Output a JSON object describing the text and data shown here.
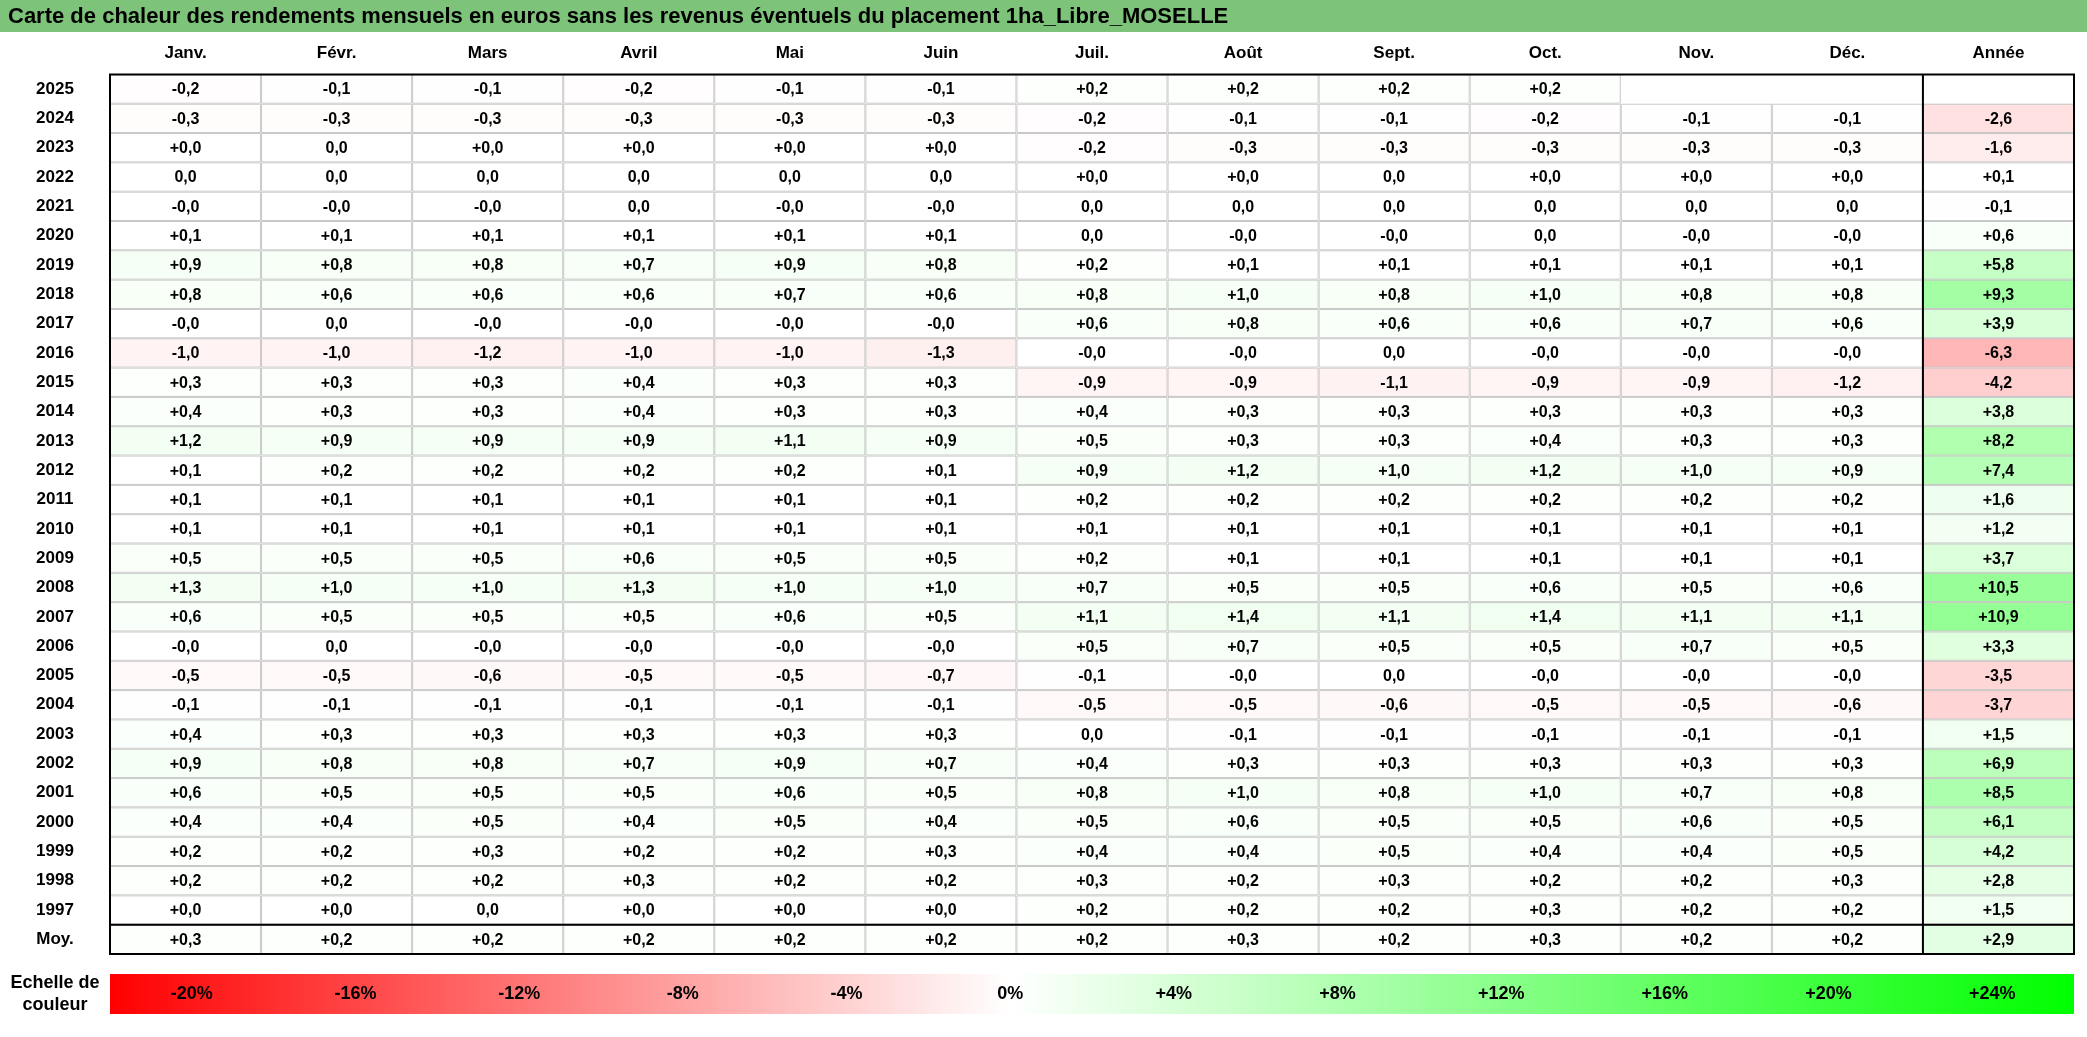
{
  "chart_data": {
    "type": "heatmap",
    "title": "Carte de chaleur des rendements mensuels en euros sans les revenus éventuels du placement 1ha_Libre_MOSELLE",
    "categories": [
      "Janv.",
      "Févr.",
      "Mars",
      "Avril",
      "Mai",
      "Juin",
      "Juil.",
      "Août",
      "Sept.",
      "Oct.",
      "Nov.",
      "Déc.",
      "Année"
    ],
    "y_categories": [
      "2025",
      "2024",
      "2023",
      "2022",
      "2021",
      "2020",
      "2019",
      "2018",
      "2017",
      "2016",
      "2015",
      "2014",
      "2013",
      "2012",
      "2011",
      "2010",
      "2009",
      "2008",
      "2007",
      "2006",
      "2005",
      "2004",
      "2003",
      "2002",
      "2001",
      "2000",
      "1999",
      "1998",
      "1997",
      "Moy."
    ],
    "cells": [
      [
        -0.2,
        -0.1,
        -0.1,
        -0.2,
        -0.1,
        -0.1,
        0.2,
        0.2,
        0.2,
        0.2,
        null,
        null,
        null
      ],
      [
        -0.3,
        -0.3,
        -0.3,
        -0.3,
        -0.3,
        -0.3,
        -0.2,
        -0.1,
        -0.1,
        -0.2,
        -0.1,
        -0.1,
        -2.6
      ],
      [
        0,
        0,
        0,
        0,
        0,
        0,
        -0.2,
        -0.3,
        -0.3,
        -0.3,
        -0.3,
        -0.3,
        -1.6
      ],
      [
        0,
        0,
        0,
        0,
        0,
        0,
        0,
        0,
        0,
        0,
        0,
        0,
        0.1
      ],
      [
        0,
        0,
        0,
        0,
        0,
        0,
        0,
        0,
        0,
        0,
        0,
        0,
        -0.1
      ],
      [
        0.1,
        0.1,
        0.1,
        0.1,
        0.1,
        0.1,
        0,
        0,
        0,
        0,
        0,
        0,
        0.6
      ],
      [
        0.9,
        0.8,
        0.8,
        0.7,
        0.9,
        0.8,
        0.2,
        0.1,
        0.1,
        0.1,
        0.1,
        0.1,
        5.8
      ],
      [
        0.8,
        0.6,
        0.6,
        0.6,
        0.7,
        0.6,
        0.8,
        1.0,
        0.8,
        1.0,
        0.8,
        0.8,
        9.3
      ],
      [
        0,
        0,
        0,
        0,
        0,
        0,
        0.6,
        0.8,
        0.6,
        0.6,
        0.7,
        0.6,
        3.9
      ],
      [
        -1.0,
        -1.0,
        -1.2,
        -1.0,
        -1.0,
        -1.3,
        0,
        0,
        0,
        0,
        0,
        0,
        -6.3
      ],
      [
        0.3,
        0.3,
        0.3,
        0.4,
        0.3,
        0.3,
        -0.9,
        -0.9,
        -1.1,
        -0.9,
        -0.9,
        -1.2,
        -4.2
      ],
      [
        0.4,
        0.3,
        0.3,
        0.4,
        0.3,
        0.3,
        0.4,
        0.3,
        0.3,
        0.3,
        0.3,
        0.3,
        3.8
      ],
      [
        1.2,
        0.9,
        0.9,
        0.9,
        1.1,
        0.9,
        0.5,
        0.3,
        0.3,
        0.4,
        0.3,
        0.3,
        8.2
      ],
      [
        0.1,
        0.2,
        0.2,
        0.2,
        0.2,
        0.1,
        0.9,
        1.2,
        1.0,
        1.2,
        1.0,
        0.9,
        7.4
      ],
      [
        0.1,
        0.1,
        0.1,
        0.1,
        0.1,
        0.1,
        0.2,
        0.2,
        0.2,
        0.2,
        0.2,
        0.2,
        1.6
      ],
      [
        0.1,
        0.1,
        0.1,
        0.1,
        0.1,
        0.1,
        0.1,
        0.1,
        0.1,
        0.1,
        0.1,
        0.1,
        1.2
      ],
      [
        0.5,
        0.5,
        0.5,
        0.6,
        0.5,
        0.5,
        0.2,
        0.1,
        0.1,
        0.1,
        0.1,
        0.1,
        3.7
      ],
      [
        1.3,
        1.0,
        1.0,
        1.3,
        1.0,
        1.0,
        0.7,
        0.5,
        0.5,
        0.6,
        0.5,
        0.6,
        10.5
      ],
      [
        0.6,
        0.5,
        0.5,
        0.5,
        0.6,
        0.5,
        1.1,
        1.4,
        1.1,
        1.4,
        1.1,
        1.1,
        10.9
      ],
      [
        0,
        0,
        0,
        0,
        0,
        0,
        0.5,
        0.7,
        0.5,
        0.5,
        0.7,
        0.5,
        3.3
      ],
      [
        -0.5,
        -0.5,
        -0.6,
        -0.5,
        -0.5,
        -0.7,
        -0.1,
        0,
        0,
        0,
        0,
        0,
        -3.5
      ],
      [
        -0.1,
        -0.1,
        -0.1,
        -0.1,
        -0.1,
        -0.1,
        -0.5,
        -0.5,
        -0.6,
        -0.5,
        -0.5,
        -0.6,
        -3.7
      ],
      [
        0.4,
        0.3,
        0.3,
        0.3,
        0.3,
        0.3,
        0,
        -0.1,
        -0.1,
        -0.1,
        -0.1,
        -0.1,
        1.5
      ],
      [
        0.9,
        0.8,
        0.8,
        0.7,
        0.9,
        0.7,
        0.4,
        0.3,
        0.3,
        0.3,
        0.3,
        0.3,
        6.9
      ],
      [
        0.6,
        0.5,
        0.5,
        0.5,
        0.6,
        0.5,
        0.8,
        1.0,
        0.8,
        1.0,
        0.7,
        0.8,
        8.5
      ],
      [
        0.4,
        0.4,
        0.5,
        0.4,
        0.5,
        0.4,
        0.5,
        0.6,
        0.5,
        0.5,
        0.6,
        0.5,
        6.1
      ],
      [
        0.2,
        0.2,
        0.3,
        0.2,
        0.2,
        0.3,
        0.4,
        0.4,
        0.5,
        0.4,
        0.4,
        0.5,
        4.2
      ],
      [
        0.2,
        0.2,
        0.2,
        0.3,
        0.2,
        0.2,
        0.3,
        0.2,
        0.3,
        0.2,
        0.2,
        0.3,
        2.8
      ],
      [
        0,
        0,
        0,
        0,
        0,
        0,
        0.2,
        0.2,
        0.2,
        0.3,
        0.2,
        0.2,
        1.5
      ],
      [
        0.3,
        0.2,
        0.2,
        0.2,
        0.2,
        0.2,
        0.2,
        0.3,
        0.2,
        0.3,
        0.2,
        0.2,
        2.9
      ]
    ],
    "cell_labels": [
      [
        "-0,2",
        "-0,1",
        "-0,1",
        "-0,2",
        "-0,1",
        "-0,1",
        "+0,2",
        "+0,2",
        "+0,2",
        "+0,2",
        null,
        null,
        null
      ],
      [
        "-0,3",
        "-0,3",
        "-0,3",
        "-0,3",
        "-0,3",
        "-0,3",
        "-0,2",
        "-0,1",
        "-0,1",
        "-0,2",
        "-0,1",
        "-0,1",
        "-2,6"
      ],
      [
        "+0,0",
        "0,0",
        "+0,0",
        "+0,0",
        "+0,0",
        "+0,0",
        "-0,2",
        "-0,3",
        "-0,3",
        "-0,3",
        "-0,3",
        "-0,3",
        "-1,6"
      ],
      [
        "0,0",
        "0,0",
        "0,0",
        "0,0",
        "0,0",
        "0,0",
        "+0,0",
        "+0,0",
        "0,0",
        "+0,0",
        "+0,0",
        "+0,0",
        "+0,1"
      ],
      [
        "-0,0",
        "-0,0",
        "-0,0",
        "0,0",
        "-0,0",
        "-0,0",
        "0,0",
        "0,0",
        "0,0",
        "0,0",
        "0,0",
        "0,0",
        "-0,1"
      ],
      [
        "+0,1",
        "+0,1",
        "+0,1",
        "+0,1",
        "+0,1",
        "+0,1",
        "0,0",
        "-0,0",
        "-0,0",
        "0,0",
        "-0,0",
        "-0,0",
        "+0,6"
      ],
      [
        "+0,9",
        "+0,8",
        "+0,8",
        "+0,7",
        "+0,9",
        "+0,8",
        "+0,2",
        "+0,1",
        "+0,1",
        "+0,1",
        "+0,1",
        "+0,1",
        "+5,8"
      ],
      [
        "+0,8",
        "+0,6",
        "+0,6",
        "+0,6",
        "+0,7",
        "+0,6",
        "+0,8",
        "+1,0",
        "+0,8",
        "+1,0",
        "+0,8",
        "+0,8",
        "+9,3"
      ],
      [
        "-0,0",
        "0,0",
        "-0,0",
        "-0,0",
        "-0,0",
        "-0,0",
        "+0,6",
        "+0,8",
        "+0,6",
        "+0,6",
        "+0,7",
        "+0,6",
        "+3,9"
      ],
      [
        "-1,0",
        "-1,0",
        "-1,2",
        "-1,0",
        "-1,0",
        "-1,3",
        "-0,0",
        "-0,0",
        "0,0",
        "-0,0",
        "-0,0",
        "-0,0",
        "-6,3"
      ],
      [
        "+0,3",
        "+0,3",
        "+0,3",
        "+0,4",
        "+0,3",
        "+0,3",
        "-0,9",
        "-0,9",
        "-1,1",
        "-0,9",
        "-0,9",
        "-1,2",
        "-4,2"
      ],
      [
        "+0,4",
        "+0,3",
        "+0,3",
        "+0,4",
        "+0,3",
        "+0,3",
        "+0,4",
        "+0,3",
        "+0,3",
        "+0,3",
        "+0,3",
        "+0,3",
        "+3,8"
      ],
      [
        "+1,2",
        "+0,9",
        "+0,9",
        "+0,9",
        "+1,1",
        "+0,9",
        "+0,5",
        "+0,3",
        "+0,3",
        "+0,4",
        "+0,3",
        "+0,3",
        "+8,2"
      ],
      [
        "+0,1",
        "+0,2",
        "+0,2",
        "+0,2",
        "+0,2",
        "+0,1",
        "+0,9",
        "+1,2",
        "+1,0",
        "+1,2",
        "+1,0",
        "+0,9",
        "+7,4"
      ],
      [
        "+0,1",
        "+0,1",
        "+0,1",
        "+0,1",
        "+0,1",
        "+0,1",
        "+0,2",
        "+0,2",
        "+0,2",
        "+0,2",
        "+0,2",
        "+0,2",
        "+1,6"
      ],
      [
        "+0,1",
        "+0,1",
        "+0,1",
        "+0,1",
        "+0,1",
        "+0,1",
        "+0,1",
        "+0,1",
        "+0,1",
        "+0,1",
        "+0,1",
        "+0,1",
        "+1,2"
      ],
      [
        "+0,5",
        "+0,5",
        "+0,5",
        "+0,6",
        "+0,5",
        "+0,5",
        "+0,2",
        "+0,1",
        "+0,1",
        "+0,1",
        "+0,1",
        "+0,1",
        "+3,7"
      ],
      [
        "+1,3",
        "+1,0",
        "+1,0",
        "+1,3",
        "+1,0",
        "+1,0",
        "+0,7",
        "+0,5",
        "+0,5",
        "+0,6",
        "+0,5",
        "+0,6",
        "+10,5"
      ],
      [
        "+0,6",
        "+0,5",
        "+0,5",
        "+0,5",
        "+0,6",
        "+0,5",
        "+1,1",
        "+1,4",
        "+1,1",
        "+1,4",
        "+1,1",
        "+1,1",
        "+10,9"
      ],
      [
        "-0,0",
        "0,0",
        "-0,0",
        "-0,0",
        "-0,0",
        "-0,0",
        "+0,5",
        "+0,7",
        "+0,5",
        "+0,5",
        "+0,7",
        "+0,5",
        "+3,3"
      ],
      [
        "-0,5",
        "-0,5",
        "-0,6",
        "-0,5",
        "-0,5",
        "-0,7",
        "-0,1",
        "-0,0",
        "0,0",
        "-0,0",
        "-0,0",
        "-0,0",
        "-3,5"
      ],
      [
        "-0,1",
        "-0,1",
        "-0,1",
        "-0,1",
        "-0,1",
        "-0,1",
        "-0,5",
        "-0,5",
        "-0,6",
        "-0,5",
        "-0,5",
        "-0,6",
        "-3,7"
      ],
      [
        "+0,4",
        "+0,3",
        "+0,3",
        "+0,3",
        "+0,3",
        "+0,3",
        "0,0",
        "-0,1",
        "-0,1",
        "-0,1",
        "-0,1",
        "-0,1",
        "+1,5"
      ],
      [
        "+0,9",
        "+0,8",
        "+0,8",
        "+0,7",
        "+0,9",
        "+0,7",
        "+0,4",
        "+0,3",
        "+0,3",
        "+0,3",
        "+0,3",
        "+0,3",
        "+6,9"
      ],
      [
        "+0,6",
        "+0,5",
        "+0,5",
        "+0,5",
        "+0,6",
        "+0,5",
        "+0,8",
        "+1,0",
        "+0,8",
        "+1,0",
        "+0,7",
        "+0,8",
        "+8,5"
      ],
      [
        "+0,4",
        "+0,4",
        "+0,5",
        "+0,4",
        "+0,5",
        "+0,4",
        "+0,5",
        "+0,6",
        "+0,5",
        "+0,5",
        "+0,6",
        "+0,5",
        "+6,1"
      ],
      [
        "+0,2",
        "+0,2",
        "+0,3",
        "+0,2",
        "+0,2",
        "+0,3",
        "+0,4",
        "+0,4",
        "+0,5",
        "+0,4",
        "+0,4",
        "+0,5",
        "+4,2"
      ],
      [
        "+0,2",
        "+0,2",
        "+0,2",
        "+0,3",
        "+0,2",
        "+0,2",
        "+0,3",
        "+0,2",
        "+0,3",
        "+0,2",
        "+0,2",
        "+0,3",
        "+2,8"
      ],
      [
        "+0,0",
        "+0,0",
        "0,0",
        "+0,0",
        "+0,0",
        "+0,0",
        "+0,2",
        "+0,2",
        "+0,2",
        "+0,3",
        "+0,2",
        "+0,2",
        "+1,5"
      ],
      [
        "+0,3",
        "+0,2",
        "+0,2",
        "+0,2",
        "+0,2",
        "+0,2",
        "+0,2",
        "+0,3",
        "+0,2",
        "+0,3",
        "+0,2",
        "+0,2",
        "+2,9"
      ]
    ],
    "clabel": "Echelle de couleur",
    "clim": [
      -22,
      26
    ],
    "cticks": [
      {
        "value": -20,
        "label": "-20%"
      },
      {
        "value": -16,
        "label": "-16%"
      },
      {
        "value": -12,
        "label": "-12%"
      },
      {
        "value": -8,
        "label": "-8%"
      },
      {
        "value": -4,
        "label": "-4%"
      },
      {
        "value": 0,
        "label": "0%"
      },
      {
        "value": 4,
        "label": "+4%"
      },
      {
        "value": 8,
        "label": "+8%"
      },
      {
        "value": 12,
        "label": "+12%"
      },
      {
        "value": 16,
        "label": "+16%"
      },
      {
        "value": 20,
        "label": "+20%"
      },
      {
        "value": 24,
        "label": "+24%"
      }
    ]
  }
}
